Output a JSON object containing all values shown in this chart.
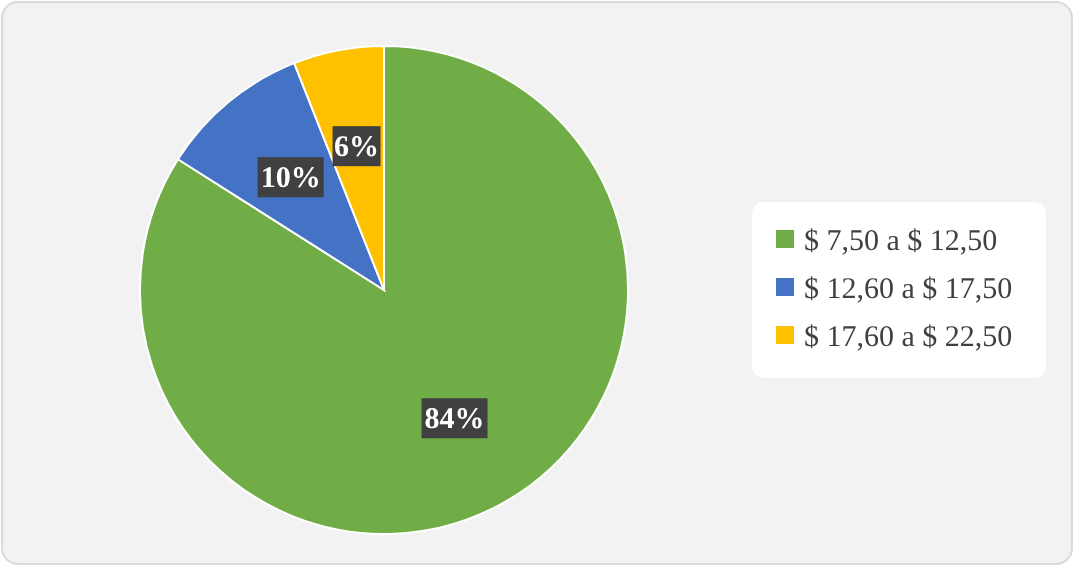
{
  "chart_data": {
    "type": "pie",
    "categories": [
      "$ 7,50 a $ 12,50",
      "$ 12,60 a $ 17,50",
      "$ 17,60 a $ 22,50"
    ],
    "values": [
      84,
      10,
      6
    ],
    "colors": [
      "#70ad47",
      "#4472c4",
      "#ffc000"
    ],
    "value_labels": [
      "84%",
      "10%",
      "6%"
    ],
    "legend": "right"
  }
}
